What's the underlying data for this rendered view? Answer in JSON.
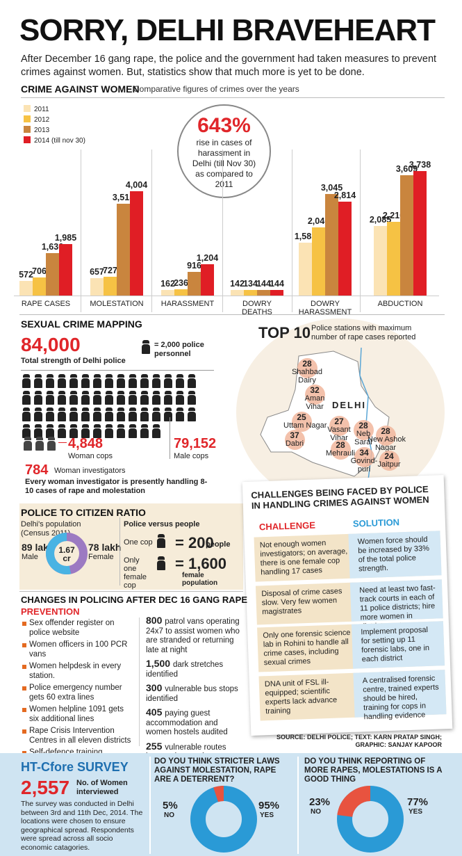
{
  "header": {
    "title": "SORRY, DELHI BRAVEHEART",
    "intro": "After December 16 gang rape, the police and the government had taken measures to prevent crimes against women. But, statistics show that much more is yet to be done."
  },
  "crime": {
    "heading": "CRIME AGAINST WOMEN",
    "subheading": "Comparative figures of crimes over the years",
    "legend": [
      "2011",
      "2012",
      "2013",
      "2014 (till nov 30)"
    ],
    "colors": [
      "#fbe3b4",
      "#f6c244",
      "#c9853e",
      "#e01e25"
    ],
    "callout": {
      "value": "643%",
      "text": "rise in cases of harassment in Delhi (till Nov 30) as compared to 2011"
    }
  },
  "chart_data": {
    "type": "bar",
    "categories": [
      "RAPE CASES",
      "MOLESTATION",
      "HARASSMENT",
      "DOWRY DEATHS",
      "DOWRY HARASSMENT",
      "ABDUCTION"
    ],
    "series": [
      {
        "name": "2011",
        "values": [
          572,
          657,
          162,
          142,
          1585,
          2085
        ]
      },
      {
        "name": "2012",
        "values": [
          706,
          727,
          236,
          134,
          2046,
          2210
        ]
      },
      {
        "name": "2013",
        "values": [
          1636,
          3515,
          916,
          144,
          3045,
          3609
        ]
      },
      {
        "name": "2014 (till nov 30)",
        "values": [
          1985,
          4004,
          1204,
          144,
          2814,
          3738
        ]
      }
    ],
    "labels": [
      [
        "572",
        "706",
        "1,636",
        "1,985"
      ],
      [
        "657",
        "727",
        "3,515",
        "4,004"
      ],
      [
        "162",
        "236",
        "916",
        "1,204"
      ],
      [
        "142",
        "134",
        "144",
        "144"
      ],
      [
        "1,585",
        "2,046",
        "3,045",
        "2,814"
      ],
      [
        "2,085",
        "2,210",
        "3,609",
        "3,738"
      ]
    ],
    "xlabel_lines": [
      [
        "RAPE CASES"
      ],
      [
        "MOLESTATION"
      ],
      [
        "HARASSMENT"
      ],
      [
        "DOWRY DEATHS"
      ],
      [
        "DOWRY",
        "HARASSMENT"
      ],
      [
        "ABDUCTION"
      ]
    ]
  },
  "mapping": {
    "heading": "SEXUAL CRIME MAPPING",
    "total": "84,000",
    "total_label": "Total strength of Delhi police",
    "icon_key": "= 2,000 police personnel",
    "women": "4,848",
    "women_label": "Woman cops",
    "men": "79,152",
    "men_label": "Male cops",
    "investigators": "784",
    "investigators_label": "Woman investigators",
    "note": "Every woman investigator is presently handling 8-10 cases of rape and molestation"
  },
  "top10": {
    "heading": "TOP 10",
    "sub": "Police stations with maximum number of rape cases reported",
    "map_label": "DELHI",
    "stations": [
      {
        "n": "28",
        "name": "Shahbad\nDairy"
      },
      {
        "n": "32",
        "name": "Aman\nVihar"
      },
      {
        "n": "25",
        "name": "Uttam Nagar"
      },
      {
        "n": "37",
        "name": "Dabri"
      },
      {
        "n": "27",
        "name": "Vasant\nVihar"
      },
      {
        "n": "28",
        "name": "Neb\nSarai"
      },
      {
        "n": "28",
        "name": "Mehrauli"
      },
      {
        "n": "34",
        "name": "Govind-\npuri"
      },
      {
        "n": "28",
        "name": "New Ashok\nNagar"
      },
      {
        "n": "24",
        "name": "Jaitpur"
      }
    ]
  },
  "ratio": {
    "heading": "POLICE TO CITIZEN RATIO",
    "pop_label": "Delhi's population (Census 2011)",
    "male": "89 lakh",
    "male_label": "Male",
    "female": "78 lakh",
    "female_label": "Female",
    "center": "1.67",
    "center_unit": "cr",
    "vs_heading": "Police versus people",
    "one_cop": "One cop",
    "one_cop_val": "200",
    "one_cop_unit": "people",
    "fem_cop": "Only one female cop",
    "fem_val": "1,600",
    "fem_unit": "female population"
  },
  "challenges": {
    "heading": "CHALLENGES BEING FACED BY POLICE IN HANDLING CRIMES AGAINST WOMEN",
    "col1": "CHALLENGE",
    "col2": "SOLUTION",
    "rows": [
      {
        "c": "Not enough women investigators; on average, there is one female cop handling 17 cases",
        "s": "Women force should be increased by 33% of the total police strength."
      },
      {
        "c": "Disposal of crime cases slow. Very few women magistrates",
        "s": "Need at least two fast-track courts in each of 11 police districts; hire more women in district courts"
      },
      {
        "c": "Only one forensic science lab in Rohini to handle all crime cases, including sexual crimes",
        "s": "Implement proposal for setting up 11 forensic labs, one in each district"
      },
      {
        "c": "DNA unit of FSL ill-equipped; scientific experts lack advance training",
        "s": "A centralised forensic centre, trained experts should be hired, training for cops in handling evidence"
      }
    ]
  },
  "changes": {
    "heading": "CHANGES IN POLICING AFTER DEC 16 GANG RAPE",
    "sub": "PREVENTION",
    "items": [
      "Sex offender register on police website",
      "Women officers in 100 PCR vans",
      "Women helpdesk in every station.",
      "Police emergency number gets 60 extra lines",
      "Women helpline 1091 gets six additional lines",
      "Rape Crisis Intervention Centres in all eleven districts",
      "Self-defence training programmes for women launched"
    ],
    "stats": [
      {
        "n": "800",
        "t": "patrol vans operating 24x7 to assist women who are stranded or returning late at night"
      },
      {
        "n": "1,500",
        "t": "dark stretches identified"
      },
      {
        "n": "300",
        "t": "vulnerable bus stops identified"
      },
      {
        "n": "405",
        "t": "paying guest accommodation and women hostels audited"
      },
      {
        "n": "255",
        "t": "vulnerable routes kept under watch"
      }
    ]
  },
  "source": "SOURCE: DELHI POLICE; TEXT: KARN PRATAP SINGH; GRAPHIC: SANJAY KAPOOR",
  "survey": {
    "heading": "HT-Cfore SURVEY",
    "count": "2,557",
    "count_label": "No. of Women interviewed",
    "desc": "The survey was conducted in Delhi between 3rd and 11th Dec, 2014. The locations were chosen to ensure geographical spread. Respondents were spread across all socio economic catagories.",
    "q1": {
      "q": "DO YOU THINK STRICTER LAWS AGAINST MOLESTATION, RAPE ARE A DETERRENT?",
      "no": "5%",
      "no_label": "NO",
      "yes": "95%",
      "yes_label": "YES",
      "yes_value": 95
    },
    "q2": {
      "q": "DO YOU THINK REPORTING OF MORE RAPES, MOLESTATIONS IS A GOOD THING",
      "no": "23%",
      "no_label": "NO",
      "yes": "77%",
      "yes_label": "YES",
      "yes_value": 77
    }
  }
}
